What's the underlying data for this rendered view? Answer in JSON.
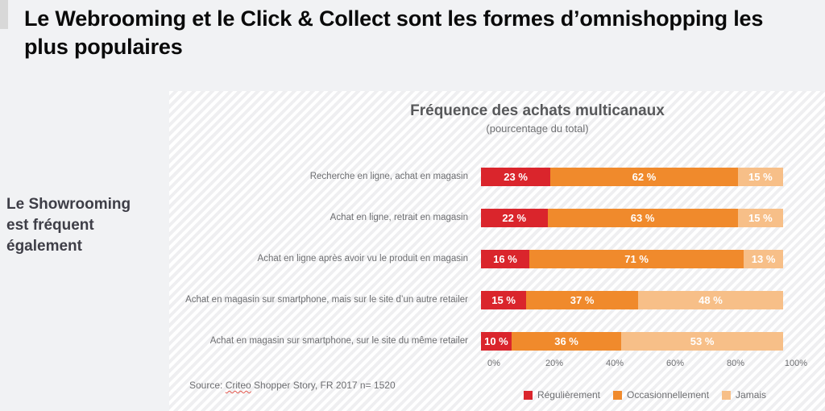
{
  "page": {
    "title": "Le Webrooming et le Click & Collect sont les formes d’omnishopping les plus populaires",
    "sidebar_note": "Le Showrooming est fréquent également",
    "source": {
      "prefix": "Source: ",
      "link": "Criteo",
      "rest": " Shopper Story, FR 2017 n= 1520"
    }
  },
  "colors": {
    "regulierement": "#da252c",
    "occasionnellement": "#f08a2c",
    "jamais": "#f7bf88",
    "panel_stripe": "#efeff1",
    "page_background": "#f1f2f4",
    "muted_text": "#6d6e71"
  },
  "chart_data": {
    "type": "bar",
    "orientation": "horizontal",
    "stacked": true,
    "title": "Fréquence des achats multicanaux",
    "subtitle": "(pourcentage du total)",
    "categories": [
      "Recherche en ligne, achat en magasin",
      "Achat en ligne, retrait en magasin",
      "Achat en ligne après avoir vu le produit en magasin",
      "Achat en magasin sur smartphone, mais sur le site d’un autre retailer",
      "Achat en magasin sur smartphone, sur le site du même retailer"
    ],
    "series": [
      {
        "name": "Régulièrement",
        "color": "#da252c",
        "values": [
          23,
          22,
          16,
          15,
          10
        ]
      },
      {
        "name": "Occasionnellement",
        "color": "#f08a2c",
        "values": [
          62,
          63,
          71,
          37,
          36
        ]
      },
      {
        "name": "Jamais",
        "color": "#f7bf88",
        "values": [
          15,
          15,
          13,
          48,
          53
        ]
      }
    ],
    "value_suffix": " %",
    "x_ticks": [
      "0%",
      "20%",
      "40%",
      "60%",
      "80%",
      "100%"
    ],
    "xlim": [
      0,
      100
    ],
    "grid": false,
    "legend_position": "bottom"
  }
}
